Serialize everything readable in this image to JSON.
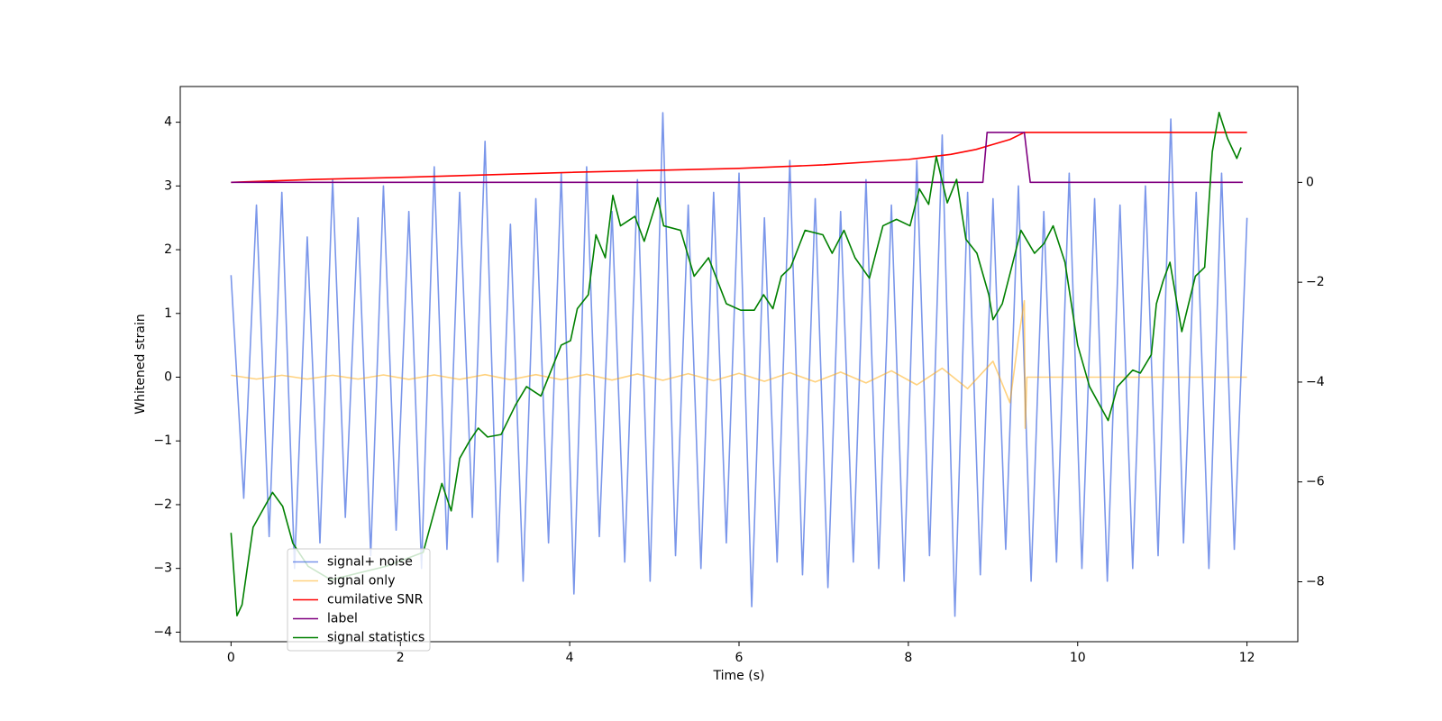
{
  "chart_data": {
    "type": "line",
    "xlabel": "Time (s)",
    "ylabel": "Whitened strain",
    "xlim": [
      -0.6,
      12.6
    ],
    "ylim": [
      -4.15,
      4.56
    ],
    "y2lim": [
      -9.2,
      1.92
    ],
    "xticks": [
      0,
      2,
      4,
      6,
      8,
      10,
      12
    ],
    "yticks": [
      {
        "value": -4,
        "label": "−4"
      },
      {
        "value": -3,
        "label": "−3"
      },
      {
        "value": -2,
        "label": "−2"
      },
      {
        "value": -1,
        "label": "−1"
      },
      0,
      1,
      2,
      3,
      4
    ],
    "y2ticks": [
      {
        "value": -8,
        "label": "−8"
      },
      {
        "value": -6,
        "label": "−6"
      },
      {
        "value": -4,
        "label": "−4"
      },
      {
        "value": -2,
        "label": "−2"
      },
      0
    ],
    "legend": "lower left",
    "series": [
      {
        "name": "signal+ noise",
        "color": "#4169e1",
        "alpha": 0.7,
        "x": [
          0,
          0.15,
          0.3,
          0.45,
          0.6,
          0.75,
          0.9,
          1.05,
          1.2,
          1.35,
          1.5,
          1.65,
          1.8,
          1.95,
          2.1,
          2.25,
          2.4,
          2.55,
          2.7,
          2.85,
          3,
          3.15,
          3.3,
          3.45,
          3.6,
          3.75,
          3.9,
          4.05,
          4.2,
          4.35,
          4.5,
          4.65,
          4.8,
          4.95,
          5.1,
          5.25,
          5.4,
          5.55,
          5.7,
          5.85,
          6,
          6.15,
          6.3,
          6.45,
          6.6,
          6.75,
          6.9,
          7.05,
          7.2,
          7.35,
          7.5,
          7.65,
          7.8,
          7.95,
          8.1,
          8.25,
          8.4,
          8.55,
          8.7,
          8.85,
          9,
          9.15,
          9.3,
          9.45,
          9.6,
          9.75,
          9.9,
          10.05,
          10.2,
          10.35,
          10.5,
          10.65,
          10.8,
          10.95,
          11.1,
          11.25,
          11.4,
          11.55,
          11.7,
          11.85,
          12
        ],
        "values": [
          1.6,
          -1.9,
          2.7,
          -2.5,
          2.9,
          -3.0,
          2.2,
          -2.6,
          3.1,
          -2.2,
          2.5,
          -2.8,
          3.0,
          -2.4,
          2.6,
          -3.0,
          3.3,
          -2.7,
          2.9,
          -2.2,
          3.7,
          -2.9,
          2.4,
          -3.2,
          2.8,
          -2.6,
          3.2,
          -3.4,
          3.3,
          -2.5,
          2.6,
          -2.9,
          3.1,
          -3.2,
          4.15,
          -2.8,
          2.7,
          -3.0,
          2.9,
          -2.6,
          3.2,
          -3.6,
          2.5,
          -2.9,
          3.4,
          -3.1,
          2.8,
          -3.3,
          2.6,
          -2.9,
          3.1,
          -3.0,
          2.7,
          -3.2,
          3.4,
          -2.8,
          3.8,
          -3.75,
          2.9,
          -3.1,
          2.8,
          -2.7,
          3.0,
          -3.2,
          2.6,
          -2.9,
          3.2,
          -3.0,
          2.8,
          -3.2,
          2.7,
          -3.0,
          3.0,
          -2.8,
          4.05,
          -2.6,
          2.9,
          -3.0,
          3.2,
          -2.7,
          2.5
        ]
      },
      {
        "name": "signal only",
        "color": "#ffa500",
        "alpha": 0.5,
        "x": [
          0,
          0.3,
          0.6,
          0.9,
          1.2,
          1.5,
          1.8,
          2.1,
          2.4,
          2.7,
          3,
          3.3,
          3.6,
          3.9,
          4.2,
          4.5,
          4.8,
          5.1,
          5.4,
          5.7,
          6,
          6.3,
          6.6,
          6.9,
          7.2,
          7.5,
          7.8,
          8.1,
          8.4,
          8.7,
          9,
          9.2,
          9.3,
          9.37,
          9.38,
          9.4,
          12
        ],
        "values": [
          0.03,
          -0.03,
          0.03,
          -0.03,
          0.03,
          -0.03,
          0.035,
          -0.035,
          0.035,
          -0.035,
          0.04,
          -0.04,
          0.04,
          -0.04,
          0.045,
          -0.045,
          0.05,
          -0.05,
          0.055,
          -0.055,
          0.06,
          -0.065,
          0.07,
          -0.075,
          0.08,
          -0.09,
          0.1,
          -0.12,
          0.14,
          -0.18,
          0.25,
          -0.4,
          0.6,
          1.2,
          -0.8,
          0,
          0
        ]
      },
      {
        "name": "cumilative SNR",
        "color": "#ff0000",
        "alpha": 1,
        "axis": "y2",
        "x": [
          0,
          1,
          2,
          3,
          4,
          5,
          6,
          7,
          8,
          8.5,
          8.8,
          9,
          9.2,
          9.37,
          12
        ],
        "values": [
          0,
          0.06,
          0.1,
          0.15,
          0.2,
          0.24,
          0.28,
          0.35,
          0.46,
          0.56,
          0.66,
          0.76,
          0.86,
          1.0,
          1.0
        ]
      },
      {
        "name": "label",
        "color": "#800080",
        "alpha": 1,
        "axis": "y2",
        "x": [
          0,
          8.88,
          8.93,
          9.37,
          9.44,
          11.95
        ],
        "values": [
          0,
          0,
          1,
          1,
          0,
          0
        ]
      },
      {
        "name": "signal statistics",
        "color": "#008000",
        "alpha": 1,
        "axis": "y2",
        "x": [
          0,
          0.07,
          0.13,
          0.26,
          0.49,
          0.61,
          0.73,
          0.91,
          1.18,
          1.83,
          2.27,
          2.49,
          2.6,
          2.7,
          2.81,
          2.92,
          3.03,
          3.19,
          3.36,
          3.49,
          3.66,
          3.9,
          4.01,
          4.09,
          4.22,
          4.31,
          4.42,
          4.51,
          4.6,
          4.77,
          4.88,
          5.04,
          5.11,
          5.31,
          5.47,
          5.64,
          5.85,
          6.02,
          6.18,
          6.29,
          6.4,
          6.5,
          6.61,
          6.78,
          6.99,
          7.1,
          7.24,
          7.37,
          7.54,
          7.7,
          7.86,
          8.02,
          8.13,
          8.24,
          8.33,
          8.46,
          8.57,
          8.68,
          8.81,
          8.95,
          9.0,
          9.11,
          9.22,
          9.33,
          9.49,
          9.6,
          9.71,
          9.85,
          10.0,
          10.14,
          10.36,
          10.47,
          10.65,
          10.74,
          10.87,
          10.93,
          11.01,
          11.09,
          11.23,
          11.39,
          11.5,
          11.59,
          11.67,
          11.77,
          11.88,
          11.93
        ],
        "values": [
          -7.02,
          -8.68,
          -8.46,
          -6.91,
          -6.21,
          -6.49,
          -7.23,
          -7.69,
          -7.96,
          -7.69,
          -7.41,
          -6.03,
          -6.58,
          -5.53,
          -5.2,
          -4.92,
          -5.1,
          -5.05,
          -4.46,
          -4.09,
          -4.28,
          -3.26,
          -3.17,
          -2.53,
          -2.25,
          -1.05,
          -1.51,
          -0.26,
          -0.87,
          -0.68,
          -1.18,
          -0.31,
          -0.87,
          -0.96,
          -1.88,
          -1.51,
          -2.43,
          -2.56,
          -2.56,
          -2.25,
          -2.53,
          -1.88,
          -1.7,
          -0.96,
          -1.05,
          -1.42,
          -0.96,
          -1.51,
          -1.92,
          -0.87,
          -0.74,
          -0.87,
          -0.13,
          -0.44,
          0.52,
          -0.41,
          0.06,
          -1.14,
          -1.42,
          -2.25,
          -2.75,
          -2.43,
          -1.7,
          -0.96,
          -1.42,
          -1.23,
          -0.87,
          -1.6,
          -3.26,
          -4.09,
          -4.77,
          -4.09,
          -3.76,
          -3.82,
          -3.45,
          -2.43,
          -1.97,
          -1.6,
          -2.99,
          -1.88,
          -1.7,
          0.61,
          1.4,
          0.88,
          0.48,
          0.7
        ]
      }
    ]
  }
}
